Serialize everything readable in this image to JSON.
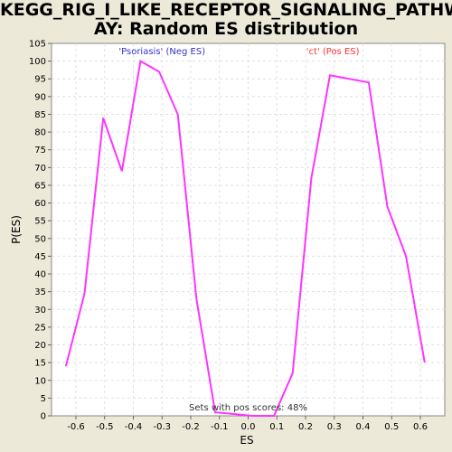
{
  "chart_data": {
    "type": "line",
    "title_line1": "KEGG_RIG_I_LIKE_RECEPTOR_SIGNALING_PATHW",
    "title_line2": "AY: Random ES distribution",
    "xlabel": "ES",
    "ylabel": "P(ES)",
    "xlim": [
      -0.685,
      0.685
    ],
    "ylim": [
      0,
      105
    ],
    "x_ticks": [
      -0.6,
      -0.5,
      -0.4,
      -0.3,
      -0.2,
      -0.1,
      0.0,
      0.1,
      0.2,
      0.3,
      0.4,
      0.5,
      0.6
    ],
    "x_tick_labels": [
      "-0.6",
      "-0.5",
      "-0.4",
      "-0.3",
      "-0.2",
      "-0.1",
      "0.0",
      "0.1",
      "0.2",
      "0.3",
      "0.4",
      "0.5",
      "0.6"
    ],
    "y_ticks": [
      0,
      5,
      10,
      15,
      20,
      25,
      30,
      35,
      40,
      45,
      50,
      55,
      60,
      65,
      70,
      75,
      80,
      85,
      90,
      95,
      100,
      105
    ],
    "grid": true,
    "series": [
      {
        "color": "#ff33ff",
        "x": [
          -0.635,
          -0.57,
          -0.505,
          -0.44,
          -0.375,
          -0.31,
          -0.245,
          -0.18,
          -0.115,
          -0.05,
          0.015,
          0.09,
          0.155,
          0.22,
          0.285,
          0.42,
          0.485,
          0.55,
          0.615
        ],
        "y": [
          14,
          34.5,
          84,
          69,
          100,
          97,
          85,
          33,
          1,
          0.5,
          0,
          0,
          12,
          67,
          96,
          null,
          59,
          45,
          15
        ]
      }
    ],
    "annotations": [
      {
        "text": "'Psoriasis' (Neg ES)",
        "x": -0.3,
        "y": 102,
        "color": "#3333cc"
      },
      {
        "text": "'ct' (Pos ES)",
        "x": 0.295,
        "y": 102,
        "color": "#ff3333"
      },
      {
        "text": "Sets with pos scores: 48%",
        "x": 0.0,
        "y": 1.5,
        "color": "#333333"
      }
    ]
  }
}
